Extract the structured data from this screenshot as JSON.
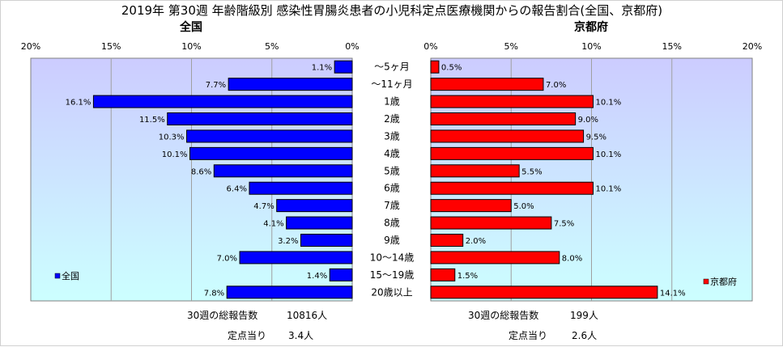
{
  "title": "2019年 第30週 年齢階級別 感染性胃腸炎患者の小児科定点医療機関からの報告割合(全国、京都府)",
  "colors": {
    "national": "#0000ff",
    "kyoto": "#ff0000",
    "plot_top": "#ccccff",
    "plot_bottom": "#ccffff"
  },
  "chart_data": {
    "type": "bar",
    "orientation": "horizontal-butterfly",
    "categories": [
      "～5ヶ月",
      "～11ヶ月",
      "1歳",
      "2歳",
      "3歳",
      "4歳",
      "5歳",
      "6歳",
      "7歳",
      "8歳",
      "9歳",
      "10～14歳",
      "15～19歳",
      "20歳以上"
    ],
    "unit": "%",
    "grid": true,
    "panels": [
      {
        "name": "全国",
        "legend": "全国",
        "legend_position": "bottom-left",
        "xlim": [
          20,
          0
        ],
        "ticks": [
          "20%",
          "15%",
          "10%",
          "5%",
          "0%"
        ],
        "values": [
          1.1,
          7.7,
          16.1,
          11.5,
          10.3,
          10.1,
          8.6,
          6.4,
          4.7,
          4.1,
          3.2,
          7.0,
          1.4,
          7.8
        ],
        "labels": [
          "1.1%",
          "7.7%",
          "16.1%",
          "11.5%",
          "10.3%",
          "10.1%",
          "8.6%",
          "6.4%",
          "4.7%",
          "4.1%",
          "3.2%",
          "7.0%",
          "1.4%",
          "7.8%"
        ],
        "footer_total_label": "30週の総報告数",
        "footer_total_value": "10816人",
        "footer_per_label": "定点当り",
        "footer_per_value": "3.4人"
      },
      {
        "name": "京都府",
        "legend": "京都府",
        "legend_position": "bottom-right",
        "xlim": [
          0,
          20
        ],
        "ticks": [
          "0%",
          "5%",
          "10%",
          "15%",
          "20%"
        ],
        "values": [
          0.5,
          7.0,
          10.1,
          9.0,
          9.5,
          10.1,
          5.5,
          10.1,
          5.0,
          7.5,
          2.0,
          8.0,
          1.5,
          14.1
        ],
        "labels": [
          "0.5%",
          "7.0%",
          "10.1%",
          "9.0%",
          "9.5%",
          "10.1%",
          "5.5%",
          "10.1%",
          "5.0%",
          "7.5%",
          "2.0%",
          "8.0%",
          "1.5%",
          "14.1%"
        ],
        "footer_total_label": "30週の総報告数",
        "footer_total_value": "199人",
        "footer_per_label": "定点当り",
        "footer_per_value": "2.6人"
      }
    ]
  }
}
